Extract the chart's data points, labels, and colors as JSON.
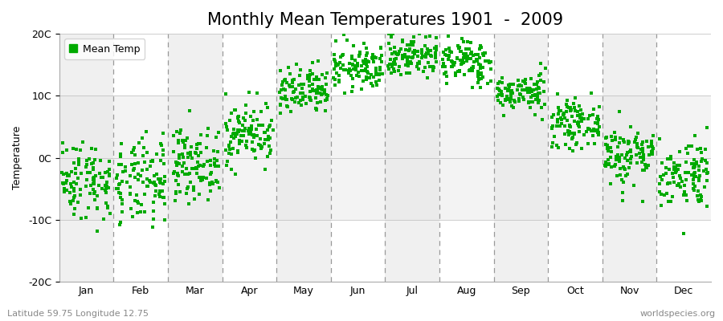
{
  "title": "Monthly Mean Temperatures 1901  -  2009",
  "ylabel": "Temperature",
  "xlabel_labels": [
    "Jan",
    "Feb",
    "Mar",
    "Apr",
    "May",
    "Jun",
    "Jul",
    "Aug",
    "Sep",
    "Oct",
    "Nov",
    "Dec"
  ],
  "ylim": [
    -20,
    20
  ],
  "ytick_labels": [
    "-20C",
    "-10C",
    "0C",
    "10C",
    "20C"
  ],
  "ytick_vals": [
    -20,
    -10,
    0,
    10,
    20
  ],
  "dot_color": "#00aa00",
  "plot_bg_light": "#f0f0f0",
  "plot_bg_dark": "#e0e0e0",
  "fig_background": "#ffffff",
  "legend_label": "Mean Temp",
  "subtitle_left": "Latitude 59.75 Longitude 12.75",
  "subtitle_right": "worldspecies.org",
  "n_years": 109,
  "monthly_means": [
    -3.5,
    -4.2,
    -1.0,
    4.0,
    10.5,
    14.5,
    16.5,
    15.5,
    10.5,
    5.5,
    0.5,
    -2.5
  ],
  "monthly_stds": [
    3.2,
    3.5,
    2.8,
    2.5,
    2.0,
    1.8,
    1.8,
    1.8,
    1.5,
    1.8,
    2.5,
    2.8
  ],
  "title_fontsize": 15,
  "axis_fontsize": 9,
  "legend_fontsize": 9,
  "dot_size": 10,
  "seed": 42
}
